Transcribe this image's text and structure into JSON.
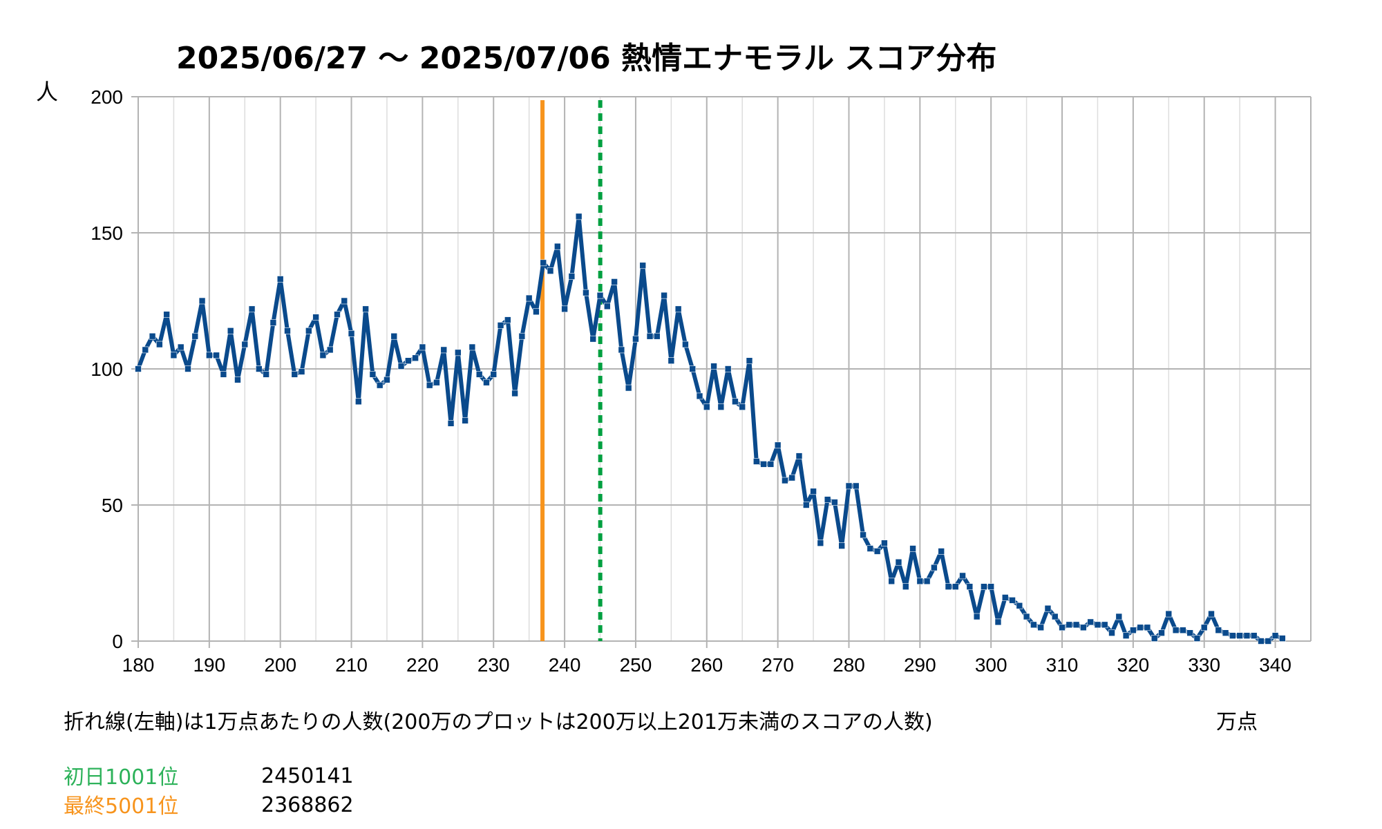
{
  "title": "2025/06/27 〜 2025/07/06 熱情エナモラル スコア分布",
  "y_unit": "人",
  "x_unit": "万点",
  "footnote": "折れ線(左軸)は1万点あたりの人数(200万のプロットは200万以上201万未満のスコアの人数)",
  "markers": [
    {
      "label": "初日1001位",
      "value": "2450141",
      "color": "#2db25a",
      "line_color": "#00a040",
      "x": 245.0141,
      "style": "dashed"
    },
    {
      "label": "最終5001位",
      "value": "2368862",
      "color": "#f7941d",
      "line_color": "#f7941d",
      "x": 236.8862,
      "style": "solid"
    }
  ],
  "chart_data": {
    "type": "line",
    "title": "2025/06/27 〜 2025/07/06 熱情エナモラル スコア分布",
    "xlabel": "万点",
    "ylabel": "人",
    "xlim": [
      180,
      345
    ],
    "ylim": [
      0,
      200
    ],
    "x_ticks": [
      180,
      190,
      200,
      210,
      220,
      230,
      240,
      250,
      260,
      270,
      280,
      290,
      300,
      310,
      320,
      330,
      340
    ],
    "y_ticks": [
      0,
      50,
      100,
      150,
      200
    ],
    "grid": true,
    "series": [
      {
        "color": "#0a4a8c",
        "x_start": 180,
        "x_step": 1,
        "values": [
          100,
          107,
          112,
          109,
          120,
          105,
          108,
          100,
          112,
          125,
          105,
          105,
          98,
          114,
          96,
          109,
          122,
          100,
          98,
          117,
          133,
          114,
          98,
          99,
          114,
          119,
          105,
          107,
          120,
          125,
          113,
          88,
          122,
          98,
          94,
          96,
          112,
          101,
          103,
          104,
          108,
          94,
          95,
          107,
          80,
          106,
          81,
          108,
          98,
          95,
          98,
          116,
          118,
          91,
          112,
          126,
          121,
          139,
          136,
          145,
          122,
          134,
          156,
          128,
          111,
          127,
          123,
          132,
          107,
          93,
          111,
          138,
          112,
          112,
          127,
          103,
          122,
          109,
          100,
          90,
          86,
          101,
          86,
          100,
          88,
          86,
          103,
          66,
          65,
          65,
          72,
          59,
          60,
          68,
          50,
          55,
          36,
          52,
          51,
          35,
          57,
          57,
          39,
          34,
          33,
          36,
          22,
          29,
          20,
          34,
          22,
          22,
          27,
          33,
          20,
          20,
          24,
          20,
          9,
          20,
          20,
          7,
          16,
          15,
          13,
          9,
          6,
          5,
          12,
          9,
          5,
          6,
          6,
          5,
          7,
          6,
          6,
          3,
          9,
          2,
          4,
          5,
          5,
          1,
          3,
          10,
          4,
          4,
          3,
          1,
          5,
          10,
          4,
          3,
          2,
          2,
          2,
          2,
          0,
          0,
          2,
          1
        ]
      }
    ]
  }
}
